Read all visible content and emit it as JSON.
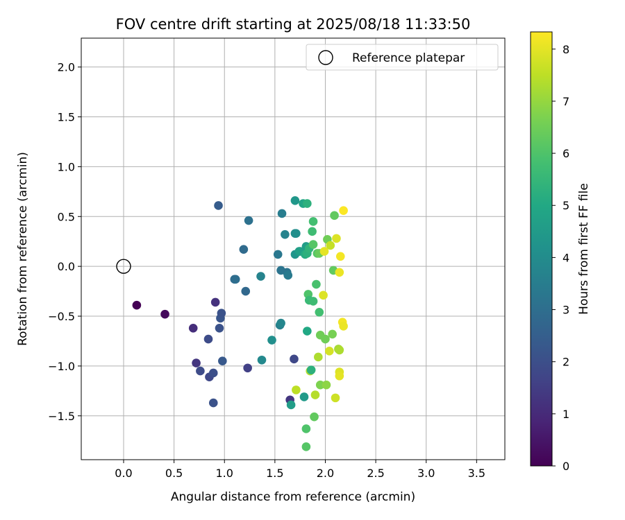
{
  "chart_data": {
    "type": "scatter",
    "title": "FOV centre drift starting at 2025/08/18 11:33:50",
    "xlabel": "Angular distance from reference (arcmin)",
    "ylabel": "Rotation from reference (arcmin)",
    "xlim": [
      -0.42,
      3.78
    ],
    "ylim": [
      -1.94,
      2.29
    ],
    "xticks": [
      "0.0",
      "0.5",
      "1.0",
      "1.5",
      "2.0",
      "2.5",
      "3.0",
      "3.5"
    ],
    "yticks": [
      "−1.5",
      "−1.0",
      "−0.5",
      "0.0",
      "0.5",
      "1.0",
      "1.5",
      "2.0"
    ],
    "grid": true,
    "legend": {
      "position": "top-right",
      "label": "Reference platepar"
    },
    "reference_point": {
      "x": 0.0,
      "y": 0.0
    },
    "colorbar": {
      "label": "Hours from first FF file",
      "min": 0,
      "max": 8.33,
      "ticks": [
        "0",
        "1",
        "2",
        "3",
        "4",
        "5",
        "6",
        "7",
        "8"
      ],
      "colormap": "viridis"
    },
    "points": [
      {
        "x": 0.13,
        "y": -0.39,
        "h": 0.0
      },
      {
        "x": 0.41,
        "y": -0.48,
        "h": 0.2
      },
      {
        "x": 0.69,
        "y": -0.62,
        "h": 1.1
      },
      {
        "x": 0.72,
        "y": -0.97,
        "h": 1.3
      },
      {
        "x": 0.91,
        "y": -0.36,
        "h": 1.2
      },
      {
        "x": 0.76,
        "y": -1.05,
        "h": 1.9
      },
      {
        "x": 0.84,
        "y": -0.73,
        "h": 1.9
      },
      {
        "x": 0.85,
        "y": -1.11,
        "h": 1.8
      },
      {
        "x": 0.89,
        "y": -1.07,
        "h": 2.0
      },
      {
        "x": 0.89,
        "y": -1.37,
        "h": 2.1
      },
      {
        "x": 0.94,
        "y": 0.61,
        "h": 2.4
      },
      {
        "x": 0.95,
        "y": -0.62,
        "h": 2.1
      },
      {
        "x": 0.96,
        "y": -0.52,
        "h": 2.2
      },
      {
        "x": 0.97,
        "y": -0.47,
        "h": 2.1
      },
      {
        "x": 0.98,
        "y": -0.95,
        "h": 2.3
      },
      {
        "x": 1.1,
        "y": -0.13,
        "h": 2.9
      },
      {
        "x": 1.11,
        "y": -0.13,
        "h": 3.0
      },
      {
        "x": 1.19,
        "y": 0.17,
        "h": 2.9
      },
      {
        "x": 1.21,
        "y": -0.25,
        "h": 2.8
      },
      {
        "x": 1.23,
        "y": -1.02,
        "h": 1.6
      },
      {
        "x": 1.24,
        "y": 0.46,
        "h": 3.1
      },
      {
        "x": 1.36,
        "y": -0.1,
        "h": 3.7
      },
      {
        "x": 1.37,
        "y": -0.94,
        "h": 3.9
      },
      {
        "x": 1.47,
        "y": -0.74,
        "h": 4.1
      },
      {
        "x": 1.53,
        "y": 0.12,
        "h": 3.3
      },
      {
        "x": 1.55,
        "y": -0.59,
        "h": 3.6
      },
      {
        "x": 1.56,
        "y": -0.04,
        "h": 3.2
      },
      {
        "x": 1.56,
        "y": -0.57,
        "h": 3.8
      },
      {
        "x": 1.57,
        "y": 0.53,
        "h": 3.5
      },
      {
        "x": 1.6,
        "y": 0.32,
        "h": 3.7
      },
      {
        "x": 1.62,
        "y": -0.06,
        "h": 3.2
      },
      {
        "x": 1.63,
        "y": -0.09,
        "h": 3.4
      },
      {
        "x": 1.65,
        "y": -1.34,
        "h": 1.3
      },
      {
        "x": 1.66,
        "y": -1.39,
        "h": 4.6
      },
      {
        "x": 1.69,
        "y": -0.93,
        "h": 1.8
      },
      {
        "x": 1.7,
        "y": 0.66,
        "h": 4.4
      },
      {
        "x": 1.7,
        "y": 0.12,
        "h": 4.3
      },
      {
        "x": 1.7,
        "y": 0.33,
        "h": 4.0
      },
      {
        "x": 1.71,
        "y": 0.33,
        "h": 4.1
      },
      {
        "x": 1.71,
        "y": -1.24,
        "h": 7.5
      },
      {
        "x": 1.74,
        "y": 0.15,
        "h": 4.6
      },
      {
        "x": 1.75,
        "y": 0.15,
        "h": 4.7
      },
      {
        "x": 1.78,
        "y": 0.63,
        "h": 4.9
      },
      {
        "x": 1.79,
        "y": -1.31,
        "h": 4.5
      },
      {
        "x": 1.8,
        "y": 0.12,
        "h": 5.1
      },
      {
        "x": 1.81,
        "y": 0.2,
        "h": 4.6
      },
      {
        "x": 1.81,
        "y": -1.81,
        "h": 6.1
      },
      {
        "x": 1.81,
        "y": -1.63,
        "h": 6.0
      },
      {
        "x": 1.82,
        "y": 0.63,
        "h": 5.3
      },
      {
        "x": 1.82,
        "y": 0.13,
        "h": 5.3
      },
      {
        "x": 1.82,
        "y": -0.65,
        "h": 5.0
      },
      {
        "x": 1.83,
        "y": -0.28,
        "h": 6.0
      },
      {
        "x": 1.84,
        "y": 0.18,
        "h": 5.4
      },
      {
        "x": 1.84,
        "y": -0.34,
        "h": 5.6
      },
      {
        "x": 1.85,
        "y": -1.05,
        "h": 7.3
      },
      {
        "x": 1.86,
        "y": -1.04,
        "h": 5.3
      },
      {
        "x": 1.87,
        "y": 0.35,
        "h": 5.7
      },
      {
        "x": 1.88,
        "y": 0.45,
        "h": 5.8
      },
      {
        "x": 1.88,
        "y": -0.35,
        "h": 5.7
      },
      {
        "x": 1.88,
        "y": 0.22,
        "h": 6.1
      },
      {
        "x": 1.89,
        "y": -1.51,
        "h": 6.3
      },
      {
        "x": 1.9,
        "y": -1.29,
        "h": 7.4
      },
      {
        "x": 1.91,
        "y": -0.18,
        "h": 5.9
      },
      {
        "x": 1.92,
        "y": 0.13,
        "h": 6.1
      },
      {
        "x": 1.93,
        "y": -0.91,
        "h": 7.3
      },
      {
        "x": 1.94,
        "y": -0.46,
        "h": 5.8
      },
      {
        "x": 1.94,
        "y": 0.13,
        "h": 6.4
      },
      {
        "x": 1.95,
        "y": -1.19,
        "h": 6.7
      },
      {
        "x": 1.95,
        "y": -0.69,
        "h": 6.5
      },
      {
        "x": 1.98,
        "y": -0.29,
        "h": 7.9
      },
      {
        "x": 1.99,
        "y": 0.15,
        "h": 8.0
      },
      {
        "x": 2.0,
        "y": -0.73,
        "h": 6.5
      },
      {
        "x": 2.01,
        "y": -1.19,
        "h": 6.9
      },
      {
        "x": 2.02,
        "y": 0.27,
        "h": 6.5
      },
      {
        "x": 2.04,
        "y": -0.85,
        "h": 7.8
      },
      {
        "x": 2.05,
        "y": 0.21,
        "h": 7.6
      },
      {
        "x": 2.07,
        "y": -0.68,
        "h": 6.6
      },
      {
        "x": 2.08,
        "y": -0.04,
        "h": 6.3
      },
      {
        "x": 2.09,
        "y": 0.51,
        "h": 6.3
      },
      {
        "x": 2.1,
        "y": -1.32,
        "h": 7.7
      },
      {
        "x": 2.11,
        "y": 0.28,
        "h": 7.9
      },
      {
        "x": 2.13,
        "y": -0.83,
        "h": 7.2
      },
      {
        "x": 2.14,
        "y": -0.84,
        "h": 7.3
      },
      {
        "x": 2.14,
        "y": -1.06,
        "h": 7.9
      },
      {
        "x": 2.14,
        "y": -1.1,
        "h": 8.0
      },
      {
        "x": 2.14,
        "y": -0.06,
        "h": 8.1
      },
      {
        "x": 2.15,
        "y": 0.1,
        "h": 8.2
      },
      {
        "x": 2.17,
        "y": -0.56,
        "h": 8.2
      },
      {
        "x": 2.18,
        "y": -0.6,
        "h": 8.1
      },
      {
        "x": 2.18,
        "y": 0.56,
        "h": 8.3
      }
    ]
  }
}
